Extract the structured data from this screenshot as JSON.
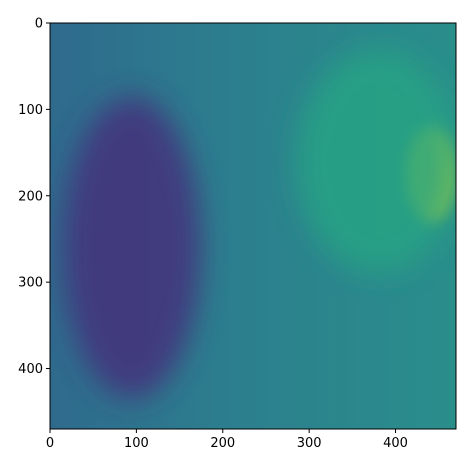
{
  "chart_data": {
    "type": "heatmap",
    "title": "",
    "xlabel": "",
    "ylabel": "",
    "colormap": "viridis",
    "xlim": [
      0,
      470
    ],
    "ylim": [
      470,
      0
    ],
    "y_axis_inverted": true,
    "x_ticks": [
      0,
      100,
      200,
      300,
      400
    ],
    "y_ticks": [
      0,
      100,
      200,
      300,
      400
    ],
    "x_tick_labels": [
      "0",
      "100",
      "200",
      "300",
      "400"
    ],
    "y_tick_labels": [
      "0",
      "100",
      "200",
      "300",
      "400"
    ],
    "grid": false,
    "colors": {
      "background_mid": "#2e7f8e",
      "dark_region": "#472f7d",
      "bright_region": "#d8e219"
    },
    "features": [
      {
        "label": "dark crescent region",
        "cx": 95,
        "cy": 260,
        "rx": 80,
        "ry": 175,
        "color": "#45307c"
      },
      {
        "label": "bright hotspot",
        "cx": 440,
        "cy": 175,
        "rx": 28,
        "ry": 55,
        "color": "#e3e418"
      },
      {
        "label": "upper-right teal region",
        "cx": 380,
        "cy": 160,
        "rx": 95,
        "ry": 130,
        "color": "#26a384"
      }
    ]
  }
}
